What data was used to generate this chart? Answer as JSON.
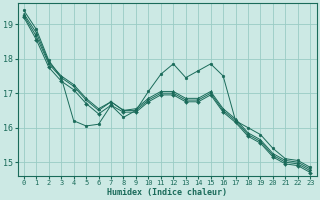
{
  "xlabel": "Humidex (Indice chaleur)",
  "xlim": [
    -0.5,
    23.5
  ],
  "ylim": [
    14.6,
    19.6
  ],
  "yticks": [
    15,
    16,
    17,
    18,
    19
  ],
  "xticks": [
    0,
    1,
    2,
    3,
    4,
    5,
    6,
    7,
    8,
    9,
    10,
    11,
    12,
    13,
    14,
    15,
    16,
    17,
    18,
    19,
    20,
    21,
    22,
    23
  ],
  "bg_color": "#cce9e4",
  "grid_color": "#99ccc4",
  "line_color": "#1a6b5a",
  "series": [
    [
      19.4,
      18.85,
      17.95,
      17.45,
      16.2,
      16.05,
      16.1,
      16.65,
      16.3,
      16.5,
      17.05,
      17.55,
      17.85,
      17.45,
      17.65,
      17.85,
      17.5,
      16.2,
      16.0,
      15.8,
      15.4,
      15.1,
      15.05,
      14.85
    ],
    [
      19.3,
      18.75,
      17.9,
      17.5,
      17.25,
      16.85,
      16.55,
      16.75,
      16.5,
      16.55,
      16.85,
      17.05,
      17.05,
      16.85,
      16.85,
      17.05,
      16.55,
      16.25,
      15.85,
      15.65,
      15.25,
      15.05,
      15.0,
      14.8
    ],
    [
      19.25,
      18.65,
      17.85,
      17.45,
      17.2,
      16.8,
      16.5,
      16.75,
      16.5,
      16.5,
      16.8,
      17.0,
      17.0,
      16.8,
      16.8,
      17.0,
      16.5,
      16.2,
      15.8,
      15.6,
      15.2,
      15.0,
      14.95,
      14.75
    ],
    [
      19.2,
      18.55,
      17.75,
      17.35,
      17.1,
      16.7,
      16.4,
      16.65,
      16.45,
      16.45,
      16.75,
      16.95,
      16.95,
      16.75,
      16.75,
      16.95,
      16.45,
      16.15,
      15.75,
      15.55,
      15.15,
      14.95,
      14.9,
      14.7
    ]
  ]
}
